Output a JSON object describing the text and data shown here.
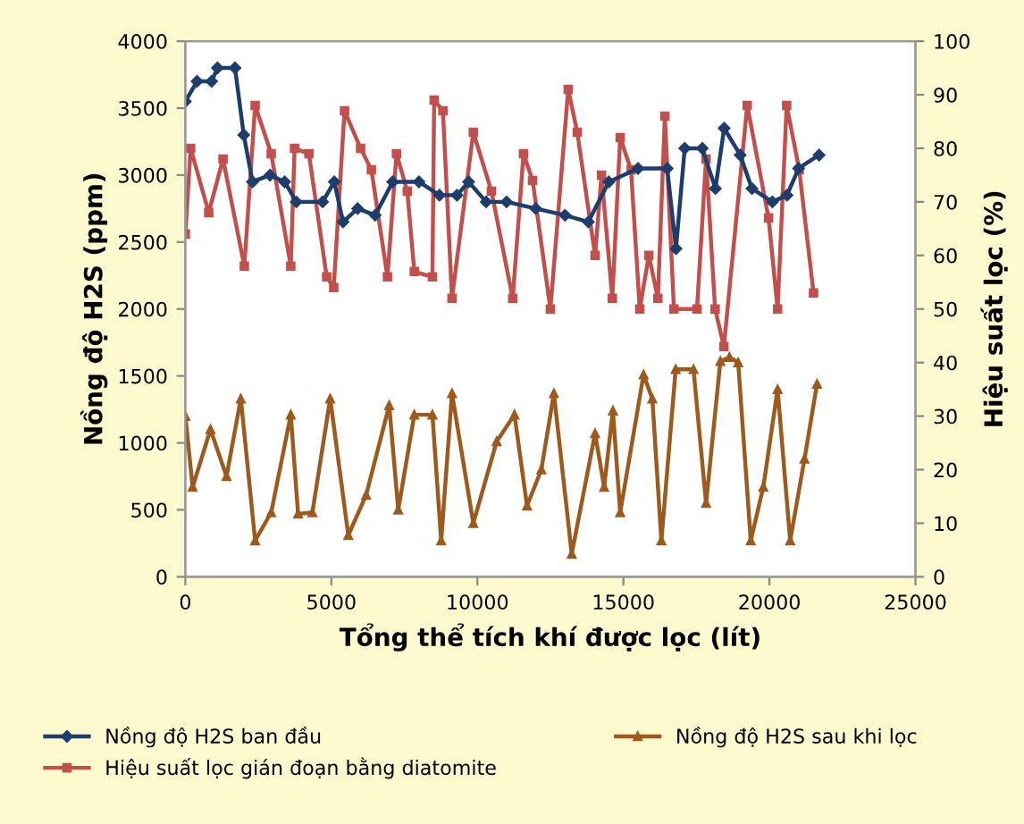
{
  "chart_data": {
    "type": "line",
    "xlabel": "Tổng thể tích khí được lọc (lít)",
    "ylabel": "Nồng độ H2S (ppm)",
    "y2label": "Hiệu suất lọc (%)",
    "xlim": [
      0,
      25000
    ],
    "xticks": [
      0,
      5000,
      10000,
      15000,
      20000,
      25000
    ],
    "ylim": [
      0,
      4000
    ],
    "yticks": [
      0,
      500,
      1000,
      1500,
      2000,
      2500,
      3000,
      3500,
      4000
    ],
    "y2lim": [
      0,
      100
    ],
    "y2ticks": [
      0,
      10,
      20,
      30,
      40,
      50,
      60,
      70,
      80,
      90,
      100
    ],
    "grid": false,
    "legend": "bottom",
    "line_style": "solid",
    "series": [
      {
        "name": "Nồng độ H2S ban đầu",
        "color": "#1f3d6b",
        "marker": "diamond",
        "x": [
          0,
          400,
          900,
          1100,
          1700,
          2000,
          2300,
          2900,
          3400,
          3800,
          4700,
          5100,
          5400,
          5900,
          6500,
          7100,
          8000,
          8700,
          9300,
          9700,
          10300,
          11000,
          12000,
          13000,
          13800,
          14500,
          15500,
          16500,
          16800,
          17100,
          17700,
          18150,
          18450,
          19000,
          19400,
          20100,
          20600,
          21000,
          21700
        ],
        "values": [
          3550,
          3700,
          3700,
          3800,
          3800,
          3300,
          2950,
          3000,
          2950,
          2800,
          2800,
          2950,
          2650,
          2750,
          2700,
          2950,
          2950,
          2850,
          2850,
          2950,
          2800,
          2800,
          2750,
          2700,
          2650,
          2950,
          3050,
          3050,
          2450,
          3200,
          3200,
          2900,
          3350,
          3150,
          2900,
          2800,
          2850,
          3050,
          3150
        ]
      },
      {
        "name": "Nồng độ H2S sau khi lọc",
        "color": "#9c5a1e",
        "marker": "triangle",
        "x": [
          0,
          250,
          860,
          1410,
          1900,
          2390,
          2940,
          3610,
          3860,
          4350,
          4960,
          5580,
          6190,
          6980,
          7290,
          7840,
          8460,
          8760,
          9130,
          9860,
          10660,
          11270,
          11700,
          12190,
          12620,
          13230,
          14030,
          14340,
          14640,
          14890,
          15690,
          15990,
          16300,
          16790,
          17400,
          17830,
          18320,
          18630,
          18930,
          19360,
          19790,
          20280,
          20710,
          21200,
          21630
        ],
        "values": [
          1200,
          670,
          1100,
          750,
          1330,
          270,
          480,
          1210,
          470,
          480,
          1330,
          310,
          610,
          1280,
          500,
          1210,
          1210,
          270,
          1370,
          400,
          1010,
          1210,
          530,
          800,
          1370,
          170,
          1070,
          670,
          1240,
          480,
          1510,
          1330,
          270,
          1550,
          1550,
          550,
          1610,
          1640,
          1600,
          270,
          670,
          1400,
          270,
          880,
          1440
        ]
      },
      {
        "name": "Hiệu suất lọc gián đoạn bằng diatomite",
        "color": "#c0504d",
        "marker": "square",
        "axis": "y2",
        "x": [
          0,
          180,
          800,
          1290,
          2020,
          2390,
          2940,
          3610,
          3740,
          4230,
          4840,
          5080,
          5450,
          6000,
          6370,
          6920,
          7230,
          7600,
          7840,
          8460,
          8520,
          8820,
          9130,
          9860,
          10480,
          11210,
          11580,
          11890,
          12500,
          13110,
          13420,
          14030,
          14250,
          14620,
          14890,
          15260,
          15560,
          15870,
          16180,
          16420,
          16730,
          17520,
          17830,
          18140,
          18440,
          19240,
          19970,
          20280,
          20590,
          21020,
          21510
        ],
        "values": [
          64,
          80,
          68,
          78,
          58,
          88,
          79,
          58,
          80,
          79,
          56,
          54,
          87,
          80,
          76,
          56,
          79,
          72,
          57,
          56,
          89,
          87,
          52,
          83,
          72,
          52,
          79,
          74,
          50,
          91,
          83,
          60,
          75,
          52,
          82,
          76,
          50,
          60,
          52,
          86,
          50,
          50,
          78,
          50,
          43,
          88,
          67,
          50,
          88,
          76,
          53
        ]
      }
    ]
  }
}
